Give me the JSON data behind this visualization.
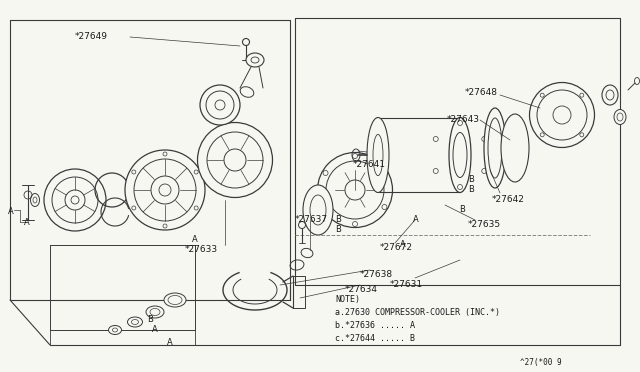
{
  "bg_color": "#f7f7f2",
  "line_color": "#3a3a3a",
  "text_color": "#1a1a1a",
  "note_lines": [
    "NOTE)",
    "a.27630 COMPRESSOR-COOLER (INC.*)",
    "b.*27636 ..... A",
    "c.*27644 ..... B"
  ],
  "footer_text": "^27(*00 9"
}
